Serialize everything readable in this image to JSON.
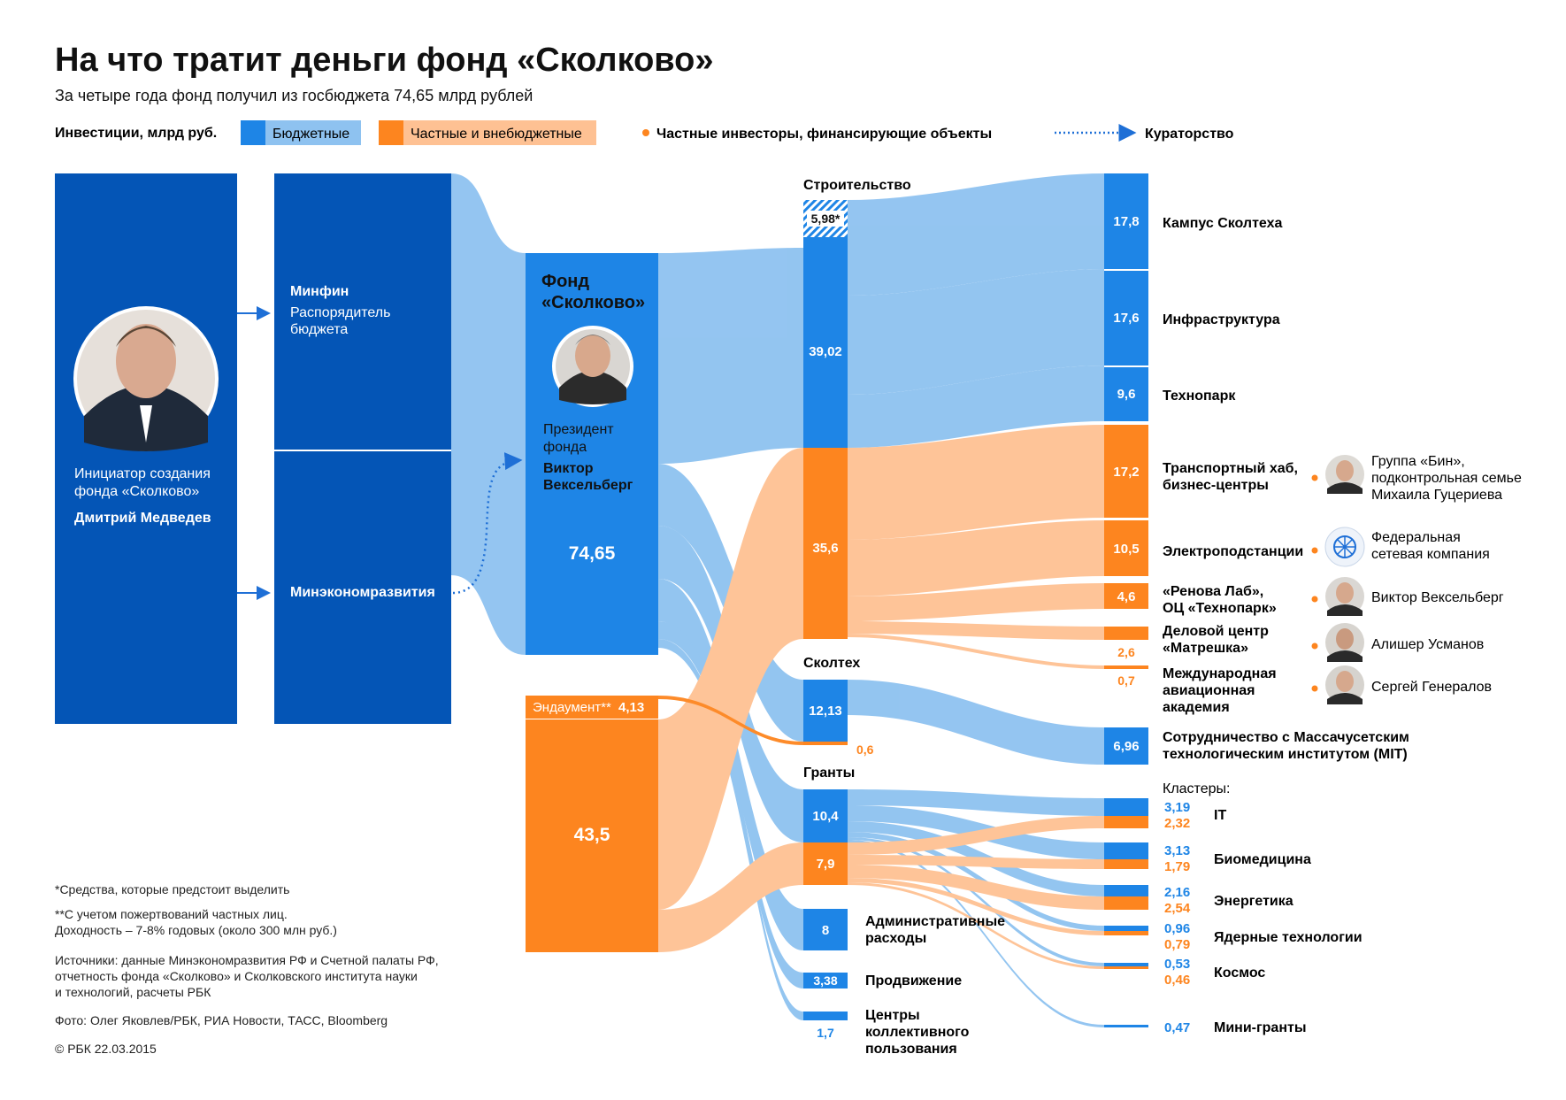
{
  "header": {
    "title": "На что тратит деньги фонд «Сколково»",
    "subtitle": "За четыре года фонд получил из госбюджета 74,65 млрд рублей"
  },
  "legend": {
    "investments_label": "Инвестиции, млрд руб.",
    "budget_label": "Бюджетные",
    "private_label": "Частные и внебюджетные",
    "investors_label": "Частные инвесторы, финансирующие объекты",
    "curatorship_label": "Кураторство"
  },
  "colors": {
    "dark_blue": "#0455b6",
    "blue": "#1e85e6",
    "light_blue": "#8ec2f0",
    "orange": "#fd851f",
    "light_orange": "#fec193"
  },
  "medvedev": {
    "role_line1": "Инициатор создания",
    "role_line2": "фонда «Сколково»",
    "name": "Дмитрий Медведев"
  },
  "minfin": {
    "title": "Минфин",
    "desc_line1": "Распорядитель",
    "desc_line2": "бюджета"
  },
  "minek": {
    "title": "Минэкономразвития"
  },
  "fund": {
    "title_line1": "Фонд",
    "title_line2": "«Сколково»",
    "role_line1": "Президент",
    "role_line2": "фонда",
    "name_line1": "Виктор",
    "name_line2": "Вексельберг",
    "value": "74,65"
  },
  "endowment": {
    "label": "Эндаумент**",
    "value": "4,13"
  },
  "private_total": {
    "value": "43,5"
  },
  "categories": {
    "construction": "Строительство",
    "skoltech": "Сколтех",
    "grants": "Гранты",
    "admin_line1": "Административные",
    "admin_line2": "расходы",
    "promo": "Продвижение",
    "centers_line1": "Центры",
    "centers_line2": "коллективного",
    "centers_line3": "пользования"
  },
  "values": {
    "construction_future": "5,98*",
    "construction_budget": "39,02",
    "construction_private": "35,6",
    "skoltech_budget": "12,13",
    "skoltech_private": "0,6",
    "grants_budget": "10,4",
    "grants_private": "7,9",
    "admin": "8",
    "promo": "3,38",
    "centers": "1,7"
  },
  "objects": {
    "campus": {
      "label": "Кампус Сколтеха",
      "value": "17,8"
    },
    "infra": {
      "label": "Инфраструктура",
      "value": "17,6"
    },
    "technopark": {
      "label": "Технопарк",
      "value": "9,6"
    },
    "hub": {
      "label_line1": "Транспортный хаб,",
      "label_line2": "бизнес-центры",
      "value": "17,2"
    },
    "substations": {
      "label": "Электроподстанции",
      "value": "10,5"
    },
    "renova": {
      "label_line1": "«Ренова Лаб»,",
      "label_line2": "ОЦ «Технопарк»",
      "value": "4,6"
    },
    "matryoshka": {
      "label_line1": "Деловой центр",
      "label_line2": "«Матрешка»",
      "value": "2,6"
    },
    "aviation": {
      "label_line1": "Международная",
      "label_line2": "авиационная",
      "label_line3": "академия",
      "value": "0,7"
    },
    "mit": {
      "label_line1": "Сотрудничество с Массачусетским",
      "label_line2": "технологическим институтом (MIT)",
      "value": "6,96"
    }
  },
  "investors": {
    "bin_line1": "Группа «Бин»,",
    "bin_line2": "подконтрольная семье",
    "bin_line3": "Михаила Гуцериева",
    "fsk_line1": "Федеральная",
    "fsk_line2": "сетевая компания",
    "vekselberg": "Виктор Вексельберг",
    "usmanov": "Алишер Усманов",
    "generalov": "Сергей Генералов"
  },
  "clusters": {
    "heading": "Кластеры:",
    "it": {
      "label": "IT",
      "budget": "3,19",
      "private": "2,32"
    },
    "bio": {
      "label": "Биомедицина",
      "budget": "3,13",
      "private": "1,79"
    },
    "energy": {
      "label": "Энергетика",
      "budget": "2,16",
      "private": "2,54"
    },
    "nuclear": {
      "label": "Ядерные технологии",
      "budget": "0,96",
      "private": "0,79"
    },
    "space": {
      "label": "Космос",
      "budget": "0,53",
      "private": "0,46"
    },
    "mini": {
      "label": "Мини-гранты",
      "budget": "0,47"
    }
  },
  "footnotes": {
    "note1": "*Средства, которые предстоит выделить",
    "note2_line1": "**С учетом пожертвований частных лиц.",
    "note2_line2": "Доходность – 7-8% годовых (около 300 млн руб.)",
    "sources_line1": "Источники: данные Минэкономразвития РФ и Счетной палаты РФ,",
    "sources_line2": "отчетность фонда «Сколково» и Сколковского института науки",
    "sources_line3": "и технологий, расчеты РБК",
    "photo": "Фото: Олег Яковлев/РБК, РИА Новости, ТАСС, Bloomberg",
    "copyright": "© РБК 22.03.2015"
  }
}
